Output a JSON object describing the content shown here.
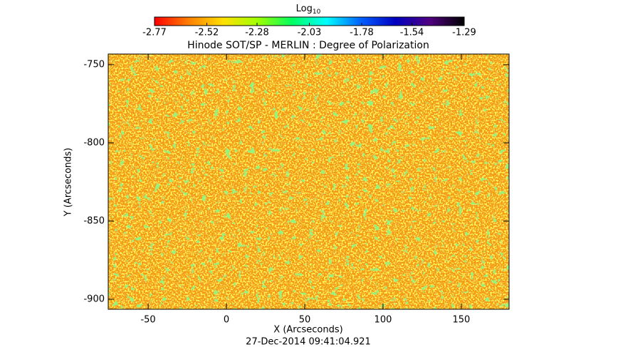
{
  "chart_data": {
    "type": "image",
    "title": "Hinode SOT/SP - MERLIN : Degree of Polarization",
    "x_label": "X (Arcseconds)",
    "y_label": "Y (Arcseconds)",
    "footer": "27-Dec-2014 09:41:04.921",
    "xlim": [
      -75.5,
      180.5
    ],
    "xticks": [
      -50,
      0,
      50,
      100,
      150
    ],
    "ylim": [
      -906.4,
      -743.2
    ],
    "yticks": [
      -750,
      -800,
      -850,
      -900
    ],
    "colorbar": {
      "label": "Log",
      "label_sub": "10",
      "lim": [
        -2.77,
        -1.29
      ],
      "ticks": [
        -2.77,
        -2.52,
        -2.28,
        -2.03,
        -1.78,
        -1.54,
        -1.29
      ],
      "colors": [
        "#ff0000",
        "#ff8000",
        "#ffe000",
        "#a0ff00",
        "#00ff60",
        "#00ffff",
        "#0060ff",
        "#0000c0",
        "#500080",
        "#000000"
      ]
    }
  }
}
